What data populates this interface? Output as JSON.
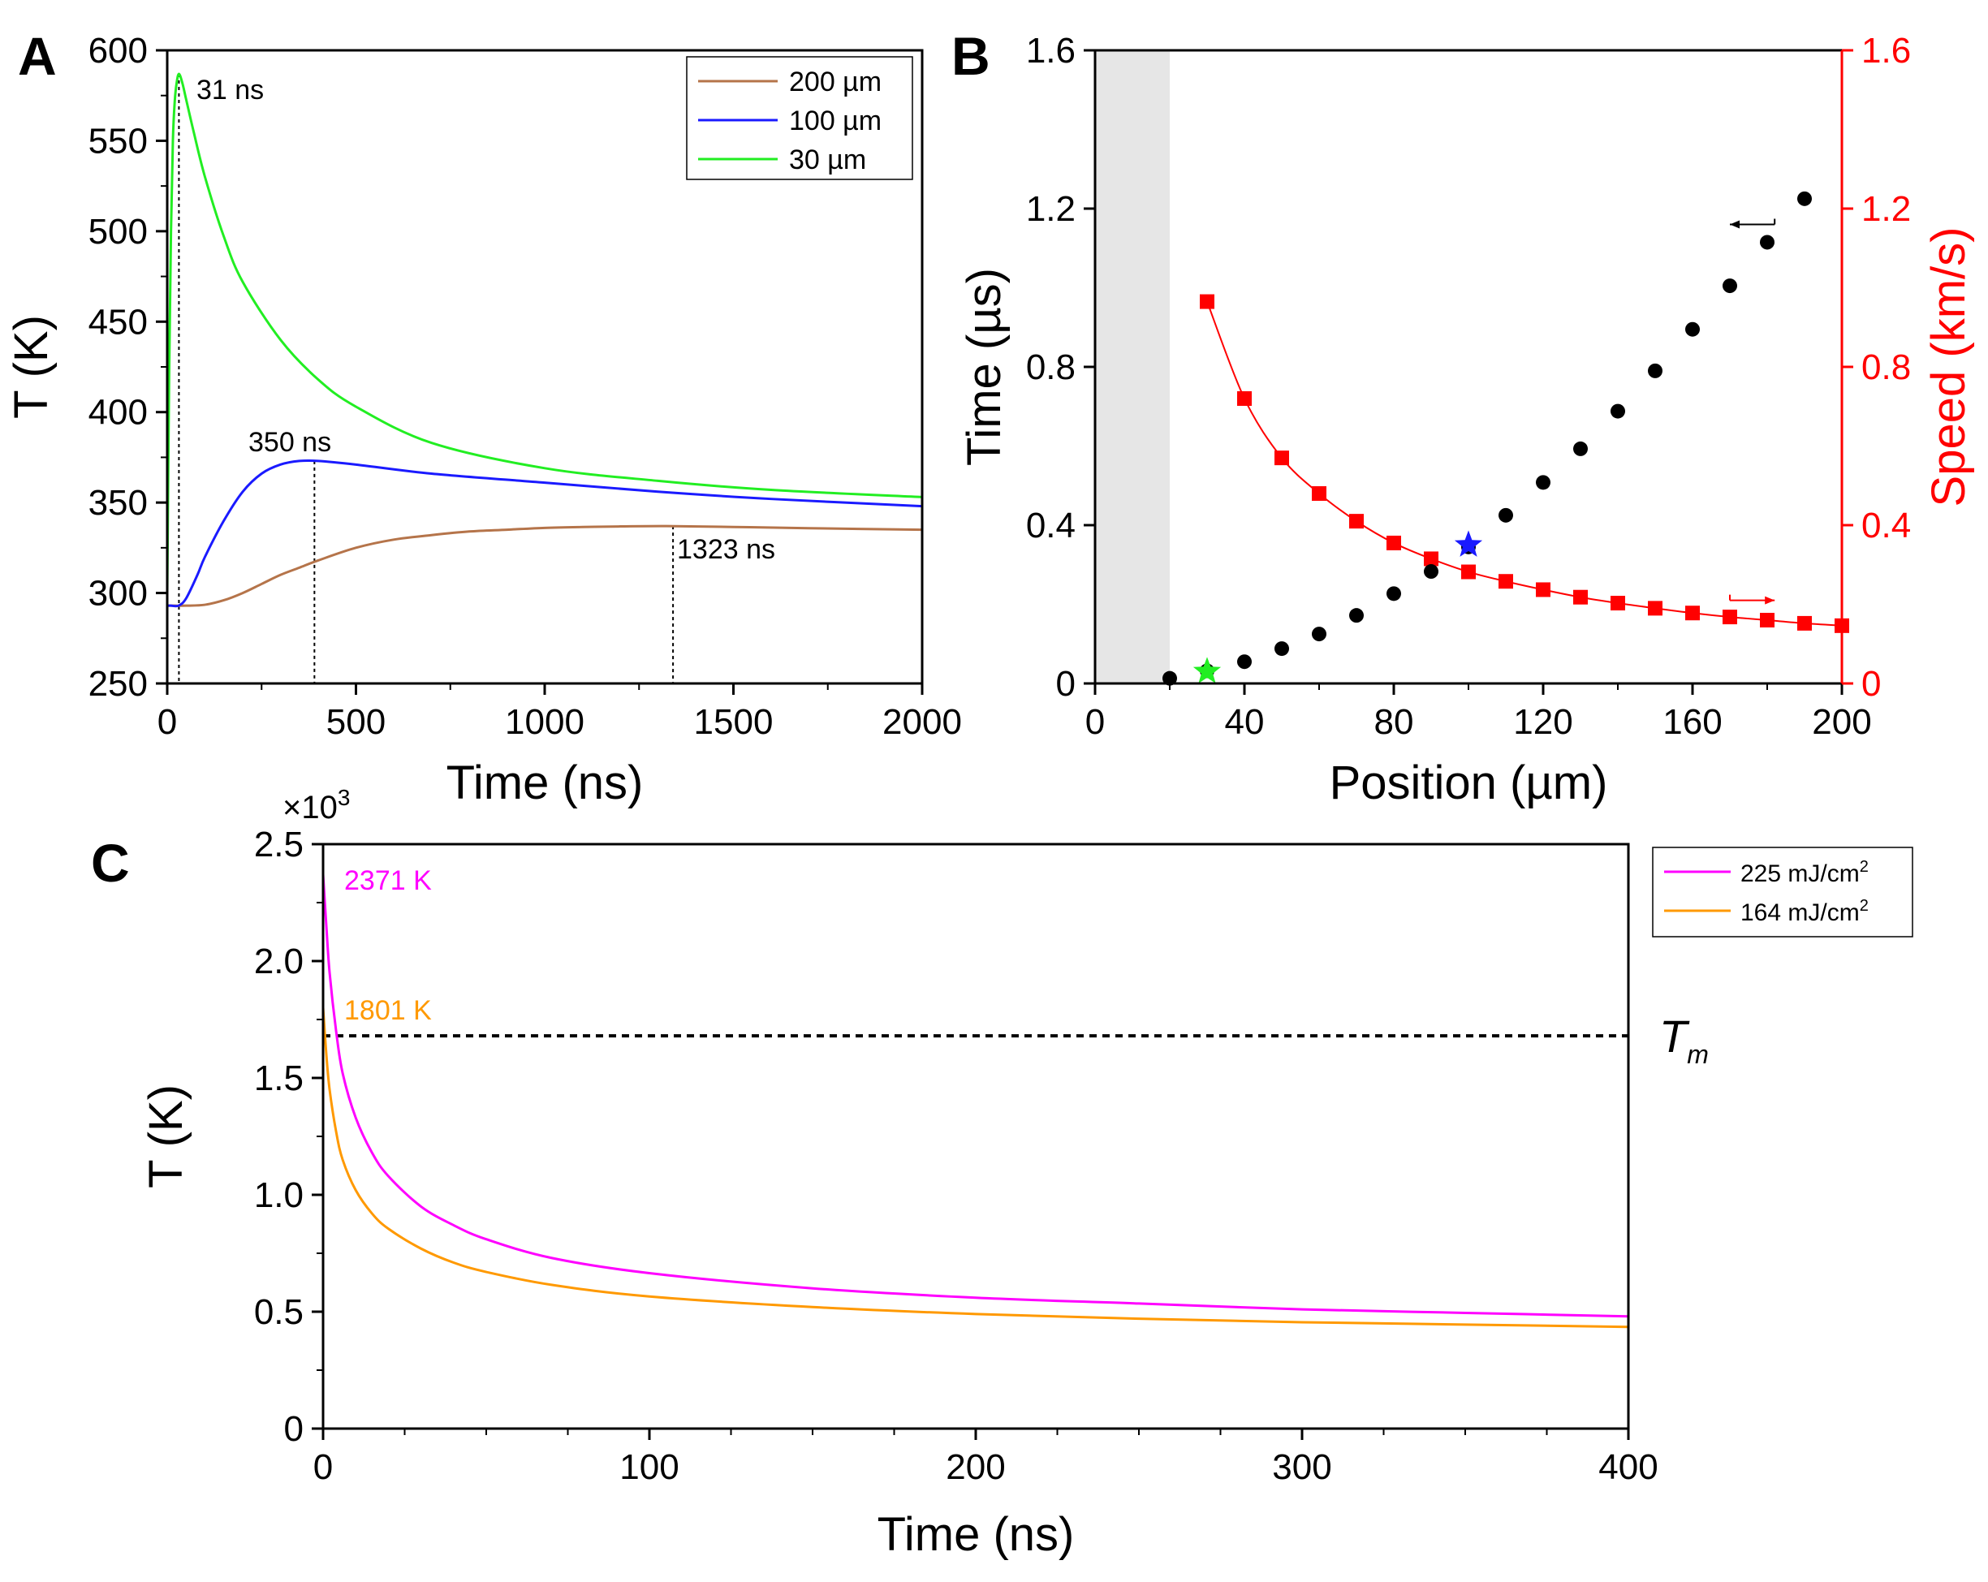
{
  "figure": {
    "panels": [
      {
        "letter": "A"
      },
      {
        "letter": "B"
      },
      {
        "letter": "C"
      }
    ]
  },
  "chart_data": [
    {
      "id": "A",
      "type": "line",
      "xlabel": "Time (ns)",
      "ylabel": "T (K)",
      "xlim": [
        0,
        2000
      ],
      "ylim": [
        250,
        600
      ],
      "xticks": [
        0,
        500,
        1000,
        1500,
        2000
      ],
      "yticks": [
        250,
        300,
        350,
        400,
        450,
        500,
        550,
        600
      ],
      "legend_position": "top-right",
      "series": [
        {
          "name": "200 µm",
          "color": "#b5744a",
          "x": [
            0,
            20,
            50,
            100,
            150,
            200,
            250,
            300,
            350,
            400,
            500,
            600,
            700,
            800,
            900,
            1000,
            1100,
            1200,
            1323,
            1500,
            1700,
            2000
          ],
          "y": [
            293,
            293,
            293,
            293.5,
            296,
            300,
            305,
            310,
            314,
            318,
            325,
            329.5,
            332,
            334,
            335,
            336,
            336.5,
            336.8,
            337,
            336.5,
            335.8,
            335
          ]
        },
        {
          "name": "100 µm",
          "color": "#1a1aff",
          "x": [
            0,
            10,
            30,
            50,
            80,
            100,
            150,
            200,
            250,
            300,
            350,
            400,
            500,
            700,
            1000,
            1300,
            1600,
            2000
          ],
          "y": [
            293,
            293,
            293,
            297,
            310,
            320,
            340,
            356,
            366,
            371,
            373,
            373,
            371,
            366,
            361,
            356,
            352,
            348
          ]
        },
        {
          "name": "30 µm",
          "color": "#22ee22",
          "x": [
            0,
            5,
            10,
            15,
            20,
            25,
            31,
            40,
            50,
            70,
            100,
            150,
            200,
            300,
            400,
            500,
            700,
            1000,
            1300,
            1600,
            2000
          ],
          "y": [
            300,
            420,
            500,
            550,
            572,
            582,
            587,
            582,
            573,
            555,
            530,
            497,
            472,
            440,
            418,
            403,
            383,
            369,
            362,
            357,
            353
          ]
        }
      ],
      "annotations": [
        {
          "text": "31 ns",
          "x": 31
        },
        {
          "text": "350 ns",
          "x": 390
        },
        {
          "text": "1323 ns",
          "x": 1340
        }
      ]
    },
    {
      "id": "B",
      "type": "scatter",
      "xlabel": "Position (µm)",
      "ylabel_left": "Time (µs)",
      "ylabel_right": "Speed (km/s)",
      "xlim": [
        0,
        200
      ],
      "ylim_left": [
        0,
        1.6
      ],
      "ylim_right": [
        0,
        1.6
      ],
      "xticks": [
        0,
        40,
        80,
        120,
        160,
        200
      ],
      "yticks_left": [
        0,
        0.4,
        0.8,
        1.2,
        1.6
      ],
      "yticks_right": [
        0,
        0.4,
        0.8,
        1.2,
        1.6
      ],
      "shaded_region_x": [
        0,
        20
      ],
      "right_axis_color": "#ff0000",
      "series": [
        {
          "name": "Time",
          "axis": "left",
          "marker": "circle",
          "color": "#000000",
          "x": [
            20,
            30,
            40,
            50,
            60,
            70,
            80,
            90,
            100,
            110,
            120,
            130,
            140,
            150,
            160,
            170,
            180,
            190
          ],
          "y": [
            0.013,
            0.032,
            0.055,
            0.088,
            0.125,
            0.172,
            0.227,
            0.283,
            0.345,
            0.425,
            0.508,
            0.593,
            0.688,
            0.79,
            0.895,
            1.005,
            1.115,
            1.225
          ]
        },
        {
          "name": "Speed",
          "axis": "right",
          "marker": "square",
          "color": "#ff0000",
          "x": [
            30,
            40,
            50,
            60,
            70,
            80,
            90,
            100,
            110,
            120,
            130,
            140,
            150,
            160,
            170,
            180,
            190,
            200
          ],
          "y": [
            0.965,
            0.72,
            0.57,
            0.48,
            0.41,
            0.355,
            0.315,
            0.282,
            0.258,
            0.237,
            0.218,
            0.203,
            0.19,
            0.178,
            0.168,
            0.16,
            0.152,
            0.146
          ]
        }
      ],
      "stars": [
        {
          "x": 30,
          "y": 0.03,
          "color": "#22ee22"
        },
        {
          "x": 100,
          "y": 0.35,
          "color": "#1a1aff"
        }
      ],
      "axis_arrows": [
        {
          "direction": "left",
          "x": [
            182,
            170
          ],
          "y": 1.16,
          "color": "#000000"
        },
        {
          "direction": "right",
          "x": [
            170,
            182
          ],
          "y": 0.21,
          "color": "#ff0000"
        }
      ]
    },
    {
      "id": "C",
      "type": "line",
      "xlabel": "Time (ns)",
      "ylabel": "T (K)",
      "y_multiplier": "×10",
      "y_multiplier_exp": "3",
      "xlim": [
        0,
        400
      ],
      "ylim": [
        0,
        2.5
      ],
      "xticks": [
        0,
        100,
        200,
        300,
        400
      ],
      "yticks": [
        0,
        0.5,
        1.0,
        1.5,
        2.0,
        2.5
      ],
      "ytick_labels": [
        "0",
        "0.5",
        "1.0",
        "1.5",
        "2.0",
        "2.5"
      ],
      "legend_position": "outside-top-right",
      "series": [
        {
          "name": "225 mJ/cm",
          "name_sup": "2",
          "color": "#ff00ff",
          "x": [
            0,
            1,
            2,
            4,
            6,
            10,
            15,
            20,
            30,
            40,
            50,
            70,
            100,
            150,
            200,
            250,
            300,
            350,
            400
          ],
          "y": [
            2.371,
            2.15,
            1.95,
            1.7,
            1.52,
            1.33,
            1.18,
            1.08,
            0.95,
            0.87,
            0.81,
            0.73,
            0.665,
            0.6,
            0.56,
            0.535,
            0.51,
            0.495,
            0.48
          ]
        },
        {
          "name": "164 mJ/cm",
          "name_sup": "2",
          "color": "#ff9900",
          "x": [
            0,
            1,
            2,
            4,
            6,
            10,
            15,
            20,
            30,
            40,
            50,
            70,
            100,
            150,
            200,
            250,
            300,
            350,
            400
          ],
          "y": [
            1.801,
            1.6,
            1.45,
            1.27,
            1.15,
            1.02,
            0.92,
            0.855,
            0.77,
            0.71,
            0.67,
            0.615,
            0.565,
            0.52,
            0.49,
            0.47,
            0.455,
            0.445,
            0.435
          ]
        }
      ],
      "reference_line": {
        "y": 1.68,
        "label": "T",
        "label_sub": "m"
      },
      "annotations": [
        {
          "text": "2371 K",
          "color": "#ff00ff"
        },
        {
          "text": "1801 K",
          "color": "#ff9900"
        }
      ]
    }
  ]
}
